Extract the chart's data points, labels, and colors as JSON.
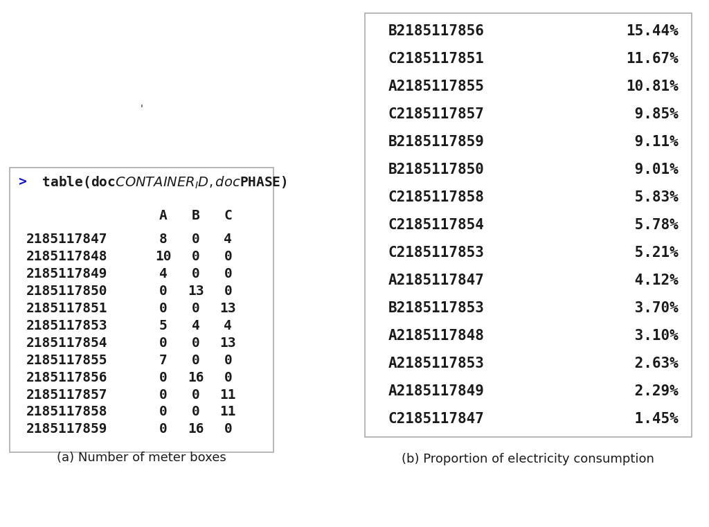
{
  "left_panel": {
    "header_arrow": ">",
    "header_text": " table(doc$CONTAINER_ID, doc$PHASE)",
    "col_headers": [
      "A",
      "B",
      "C"
    ],
    "rows": [
      [
        "2185117847",
        "8",
        "0",
        "4"
      ],
      [
        "2185117848",
        "10",
        "0",
        "0"
      ],
      [
        "2185117849",
        "4",
        "0",
        "0"
      ],
      [
        "2185117850",
        "0",
        "13",
        "0"
      ],
      [
        "2185117851",
        "0",
        "0",
        "13"
      ],
      [
        "2185117853",
        "5",
        "4",
        "4"
      ],
      [
        "2185117854",
        "0",
        "0",
        "13"
      ],
      [
        "2185117855",
        "7",
        "0",
        "0"
      ],
      [
        "2185117856",
        "0",
        "16",
        "0"
      ],
      [
        "2185117857",
        "0",
        "0",
        "11"
      ],
      [
        "2185117858",
        "0",
        "0",
        "11"
      ],
      [
        "2185117859",
        "0",
        "16",
        "0"
      ]
    ],
    "caption": "(a) Number of meter boxes"
  },
  "right_panel": {
    "rows": [
      [
        "B2185117856",
        "15.44%"
      ],
      [
        "C2185117851",
        "11.67%"
      ],
      [
        "A2185117855",
        "10.81%"
      ],
      [
        "C2185117857",
        " 9.85%"
      ],
      [
        "B2185117859",
        " 9.11%"
      ],
      [
        "B2185117850",
        " 9.01%"
      ],
      [
        "C2185117858",
        " 5.83%"
      ],
      [
        "C2185117854",
        " 5.78%"
      ],
      [
        "C2185117853",
        " 5.21%"
      ],
      [
        "A2185117847",
        " 4.12%"
      ],
      [
        "B2185117853",
        " 3.70%"
      ],
      [
        "A2185117848",
        " 3.10%"
      ],
      [
        "A2185117853",
        " 2.63%"
      ],
      [
        "A2185117849",
        " 2.29%"
      ],
      [
        "C2185117847",
        " 1.45%"
      ]
    ],
    "caption": "(b) Proportion of electricity consumption"
  },
  "bg_color": "#ffffff",
  "text_color": "#1a1a1a",
  "header_color": "#1010cc",
  "font_size": 14,
  "caption_font_size": 13,
  "apostrophe_text": "'"
}
